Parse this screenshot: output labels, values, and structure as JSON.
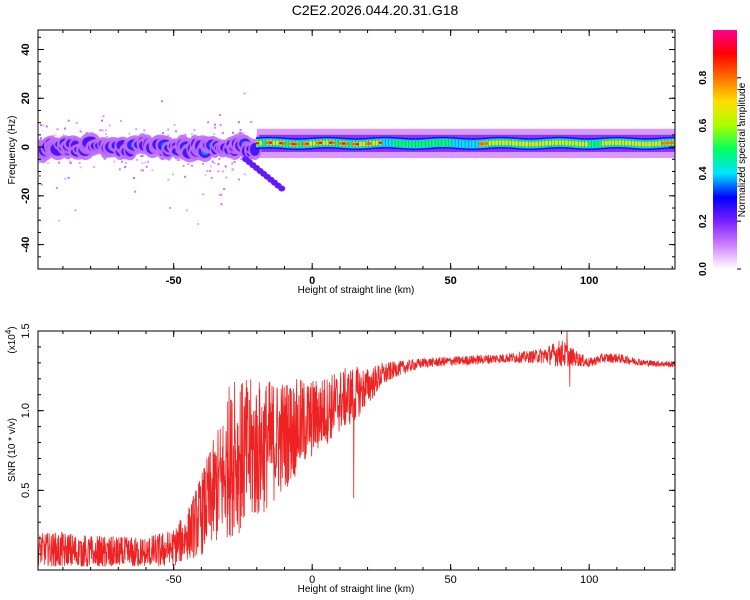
{
  "title": "C2E2.2026.044.20.31.G18",
  "chart_data": [
    {
      "type": "heatmap",
      "title": "C2E2.2026.044.20.31.G18",
      "xlabel": "Height of straight line (km)",
      "ylabel": "Frequency (Hz)",
      "xlim": [
        -99,
        131
      ],
      "ylim": [
        -50,
        48
      ],
      "xticks": [
        -50,
        0,
        50,
        100
      ],
      "xtick_labels": [
        "-50",
        "0",
        "50",
        "100"
      ],
      "yticks": [
        40,
        20,
        0,
        -20,
        -40
      ],
      "ytick_labels": [
        "40",
        "20",
        "0",
        "-20",
        "-40"
      ],
      "colorbar": {
        "label": "Normalized spectral amplitude",
        "range": [
          0,
          1
        ],
        "ticks": [
          0,
          0.2,
          0.4,
          0.6,
          0.8
        ],
        "tick_labels": [
          "0.0",
          "0.2",
          "0.4",
          "0.6",
          "0.8"
        ],
        "colors": [
          "#ffffff",
          "#d080ff",
          "#7a1fff",
          "#0000ff",
          "#00e5ff",
          "#00ff60",
          "#a8ff00",
          "#ffe000",
          "#ff7000",
          "#ff0000",
          "#ff0090"
        ]
      },
      "ridge": {
        "noisy_segment": {
          "x_range": [
            -99,
            -20
          ],
          "center_hz": 0,
          "spread_hz": 7,
          "peak_amplitude": 0.4
        },
        "tail": {
          "x_range": [
            -24,
            -11
          ],
          "center_hz": [
            -5,
            -17
          ]
        },
        "stable_segment": {
          "x_range": [
            -20,
            131
          ],
          "center_hz": 1.5,
          "spread_hz": 2,
          "peak_amplitude": 0.95
        },
        "scatter_spread_hz": 48
      }
    },
    {
      "type": "line",
      "xlabel": "Height of straight line (km)",
      "ylabel": "SNR (10 * v/v)",
      "y_multiplier": "(x10",
      "y_multiplier_exp": "4",
      "y_multiplier_close": ")",
      "xlim": [
        -99,
        131
      ],
      "ylim": [
        0,
        15000
      ],
      "xticks": [
        -50,
        0,
        50,
        100
      ],
      "xtick_labels": [
        "-50",
        "0",
        "50",
        "100"
      ],
      "yticks": [
        5000,
        10000,
        15000
      ],
      "ytick_labels": [
        "0.5",
        "1.0",
        "1.5"
      ],
      "series": [
        {
          "color": "#ee2222",
          "envelope": [
            [
              -99,
              1300,
              1000
            ],
            [
              -90,
              1200,
              1200
            ],
            [
              -80,
              1000,
              1200
            ],
            [
              -70,
              1000,
              1100
            ],
            [
              -60,
              1000,
              1100
            ],
            [
              -50,
              1400,
              1200
            ],
            [
              -45,
              2200,
              1600
            ],
            [
              -40,
              3500,
              2600
            ],
            [
              -35,
              5000,
              3500
            ],
            [
              -30,
              6500,
              4500
            ],
            [
              -25,
              7200,
              4800
            ],
            [
              -20,
              7500,
              4500
            ],
            [
              -15,
              8000,
              4000
            ],
            [
              -10,
              8500,
              3500
            ],
            [
              -5,
              9000,
              3000
            ],
            [
              0,
              9500,
              2500
            ],
            [
              5,
              10000,
              2200
            ],
            [
              10,
              10600,
              2000
            ],
            [
              15,
              11000,
              1800
            ],
            [
              20,
              11500,
              1200
            ],
            [
              25,
              12200,
              800
            ],
            [
              30,
              12600,
              500
            ],
            [
              40,
              13000,
              300
            ],
            [
              50,
              13100,
              300
            ],
            [
              60,
              13200,
              300
            ],
            [
              70,
              13300,
              300
            ],
            [
              80,
              13400,
              400
            ],
            [
              85,
              13500,
              600
            ],
            [
              90,
              13600,
              900
            ],
            [
              95,
              13300,
              500
            ],
            [
              100,
              13000,
              300
            ],
            [
              105,
              13300,
              300
            ],
            [
              110,
              13300,
              300
            ],
            [
              120,
              13000,
              200
            ],
            [
              131,
              12900,
              200
            ]
          ],
          "spikes": [
            [
              92,
              15000
            ],
            [
              93,
              11500
            ],
            [
              -30,
              11500
            ],
            [
              -28,
              11800
            ],
            [
              15,
              14600
            ],
            [
              15,
              4500
            ],
            [
              -26,
              11200
            ]
          ]
        }
      ]
    }
  ]
}
